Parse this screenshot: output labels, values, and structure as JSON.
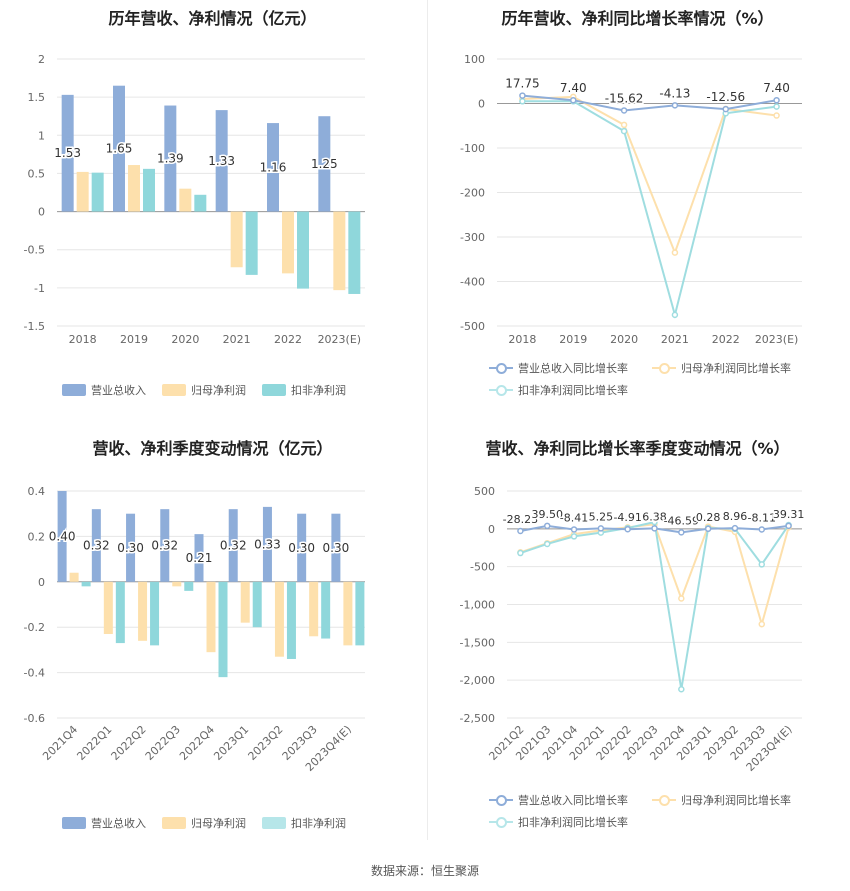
{
  "colors": {
    "revenue": "#8eadd9",
    "net_profit": "#fde0ac",
    "deducted_profit": "#8fd7db",
    "grid": "#e6e6e6",
    "axis": "#999999"
  },
  "source": "数据来源：恒生聚源",
  "legend_bar": [
    "营业总收入",
    "归母净利润",
    "扣非净利润"
  ],
  "legend_line": [
    "营业总收入同比增长率",
    "归母净利润同比增长率",
    "扣非净利润同比增长率"
  ],
  "chart_data": [
    {
      "type": "bar",
      "title": "历年营收、净利情况（亿元）",
      "categories": [
        "2018",
        "2019",
        "2020",
        "2021",
        "2022",
        "2023(E)"
      ],
      "ylim": [
        -1.5,
        2
      ],
      "yticks": [
        2,
        1.5,
        1,
        0.5,
        0,
        -0.5,
        -1,
        -1.5
      ],
      "ytick_labels": [
        "2",
        "1.5",
        "1",
        "0.5",
        "0",
        "-0.5",
        "-1",
        "-1.5"
      ],
      "series": [
        {
          "name": "营业总收入",
          "values": [
            1.53,
            1.65,
            1.39,
            1.33,
            1.16,
            1.25
          ],
          "labels": [
            "1.53",
            "1.65",
            "1.39",
            "1.33",
            "1.16",
            "1.25"
          ]
        },
        {
          "name": "归母净利润",
          "values": [
            0.52,
            0.61,
            0.3,
            -0.73,
            -0.81,
            -1.03
          ]
        },
        {
          "name": "扣非净利润",
          "values": [
            0.51,
            0.56,
            0.22,
            -0.83,
            -1.01,
            -1.08
          ]
        }
      ],
      "legend": "bottom"
    },
    {
      "type": "line",
      "title": "历年营收、净利同比增长率情况（%）",
      "categories": [
        "2018",
        "2019",
        "2020",
        "2021",
        "2022",
        "2023(E)"
      ],
      "ylim": [
        -500,
        100
      ],
      "yticks": [
        100,
        0,
        -100,
        -200,
        -300,
        -400,
        -500
      ],
      "ytick_labels": [
        "100",
        "0",
        "-100",
        "-200",
        "-300",
        "-400",
        "-500"
      ],
      "series": [
        {
          "name": "营业总收入同比增长率",
          "values": [
            17.75,
            7.4,
            -15.62,
            -4.13,
            -12.56,
            7.4
          ],
          "labels": [
            "17.75",
            "7.40",
            "-15.62",
            "-4.13",
            "-12.56",
            "7.40"
          ]
        },
        {
          "name": "归母净利润同比增长率",
          "values": [
            10,
            15,
            -48,
            -335,
            -12,
            -27
          ]
        },
        {
          "name": "扣非净利润同比增长率",
          "values": [
            5,
            5,
            -62,
            -475,
            -22,
            -7
          ]
        }
      ],
      "legend": "bottom"
    },
    {
      "type": "bar",
      "title": "营收、净利季度变动情况（亿元）",
      "categories": [
        "2021Q4",
        "2022Q1",
        "2022Q2",
        "2022Q3",
        "2022Q4",
        "2023Q1",
        "2023Q2",
        "2023Q3",
        "2023Q4(E)"
      ],
      "ylim": [
        -0.6,
        0.4
      ],
      "yticks": [
        0.4,
        0.2,
        0,
        -0.2,
        -0.4,
        -0.6
      ],
      "ytick_labels": [
        "0.4",
        "0.2",
        "0",
        "-0.2",
        "-0.4",
        "-0.6"
      ],
      "series": [
        {
          "name": "营业总收入",
          "values": [
            0.4,
            0.32,
            0.3,
            0.32,
            0.21,
            0.32,
            0.33,
            0.3,
            0.3
          ],
          "labels": [
            "0.40",
            "0.32",
            "0.30",
            "0.32",
            "0.21",
            "0.32",
            "0.33",
            "0.30",
            "0.30"
          ]
        },
        {
          "name": "归母净利润",
          "values": [
            0.04,
            -0.23,
            -0.26,
            -0.02,
            -0.31,
            -0.18,
            -0.33,
            -0.24,
            -0.28
          ]
        },
        {
          "name": "扣非净利润",
          "values": [
            -0.02,
            -0.27,
            -0.28,
            -0.04,
            -0.42,
            -0.2,
            -0.34,
            -0.25,
            -0.28
          ]
        }
      ],
      "legend": "bottom"
    },
    {
      "type": "line",
      "title": "营收、净利同比增长率季度变动情况（%）",
      "categories": [
        "2021Q2",
        "2021Q3",
        "2021Q4",
        "2022Q1",
        "2022Q2",
        "2022Q3",
        "2022Q4",
        "2023Q1",
        "2023Q2",
        "2023Q3",
        "2023Q4(E)"
      ],
      "ylim": [
        -2500,
        500
      ],
      "yticks": [
        500,
        0,
        -500,
        -1000,
        -1500,
        -2000,
        -2500
      ],
      "ytick_labels": [
        "500",
        "0",
        "-500",
        "-1,000",
        "-1,500",
        "-2,000",
        "-2,500"
      ],
      "series": [
        {
          "name": "营业总收入同比增长率",
          "values": [
            -28.23,
            39.5,
            -8.41,
            5.25,
            -4.91,
            6.38,
            -46.59,
            0.28,
            8.96,
            -8.11,
            39.31
          ],
          "labels": [
            "-28.23",
            "39.50",
            "-8.41",
            "5.25",
            "-4.91",
            "6.38",
            "-46.59",
            "0.28",
            "8.96",
            "-8.11",
            "39.31"
          ]
        },
        {
          "name": "归母净利润同比增长率",
          "values": [
            -310,
            -190,
            -70,
            -20,
            20,
            60,
            -920,
            30,
            -40,
            -1260,
            20
          ]
        },
        {
          "name": "扣非净利润同比增长率",
          "values": [
            -320,
            -200,
            -100,
            -50,
            10,
            90,
            -2120,
            10,
            0,
            -470,
            50
          ]
        }
      ],
      "legend": "bottom"
    }
  ]
}
